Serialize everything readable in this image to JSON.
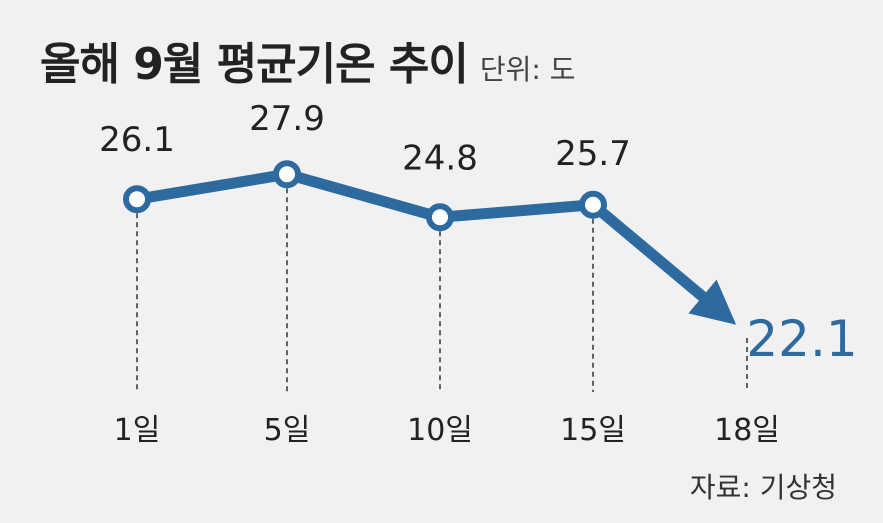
{
  "chart_data": {
    "type": "line",
    "title": "올해 9월 평균기온 추이",
    "unit_label": "단위: 도",
    "source": "자료: 기상청",
    "categories": [
      "1일",
      "5일",
      "10일",
      "15일",
      "18일"
    ],
    "values": [
      26.1,
      27.9,
      24.8,
      25.7,
      22.1
    ],
    "value_labels": [
      "26.1",
      "27.9",
      "24.8",
      "25.7",
      "22.1"
    ],
    "ylim": [
      20,
      29
    ],
    "series_color": "#2d6aa0",
    "last_label_color": "#2d6aa0"
  }
}
